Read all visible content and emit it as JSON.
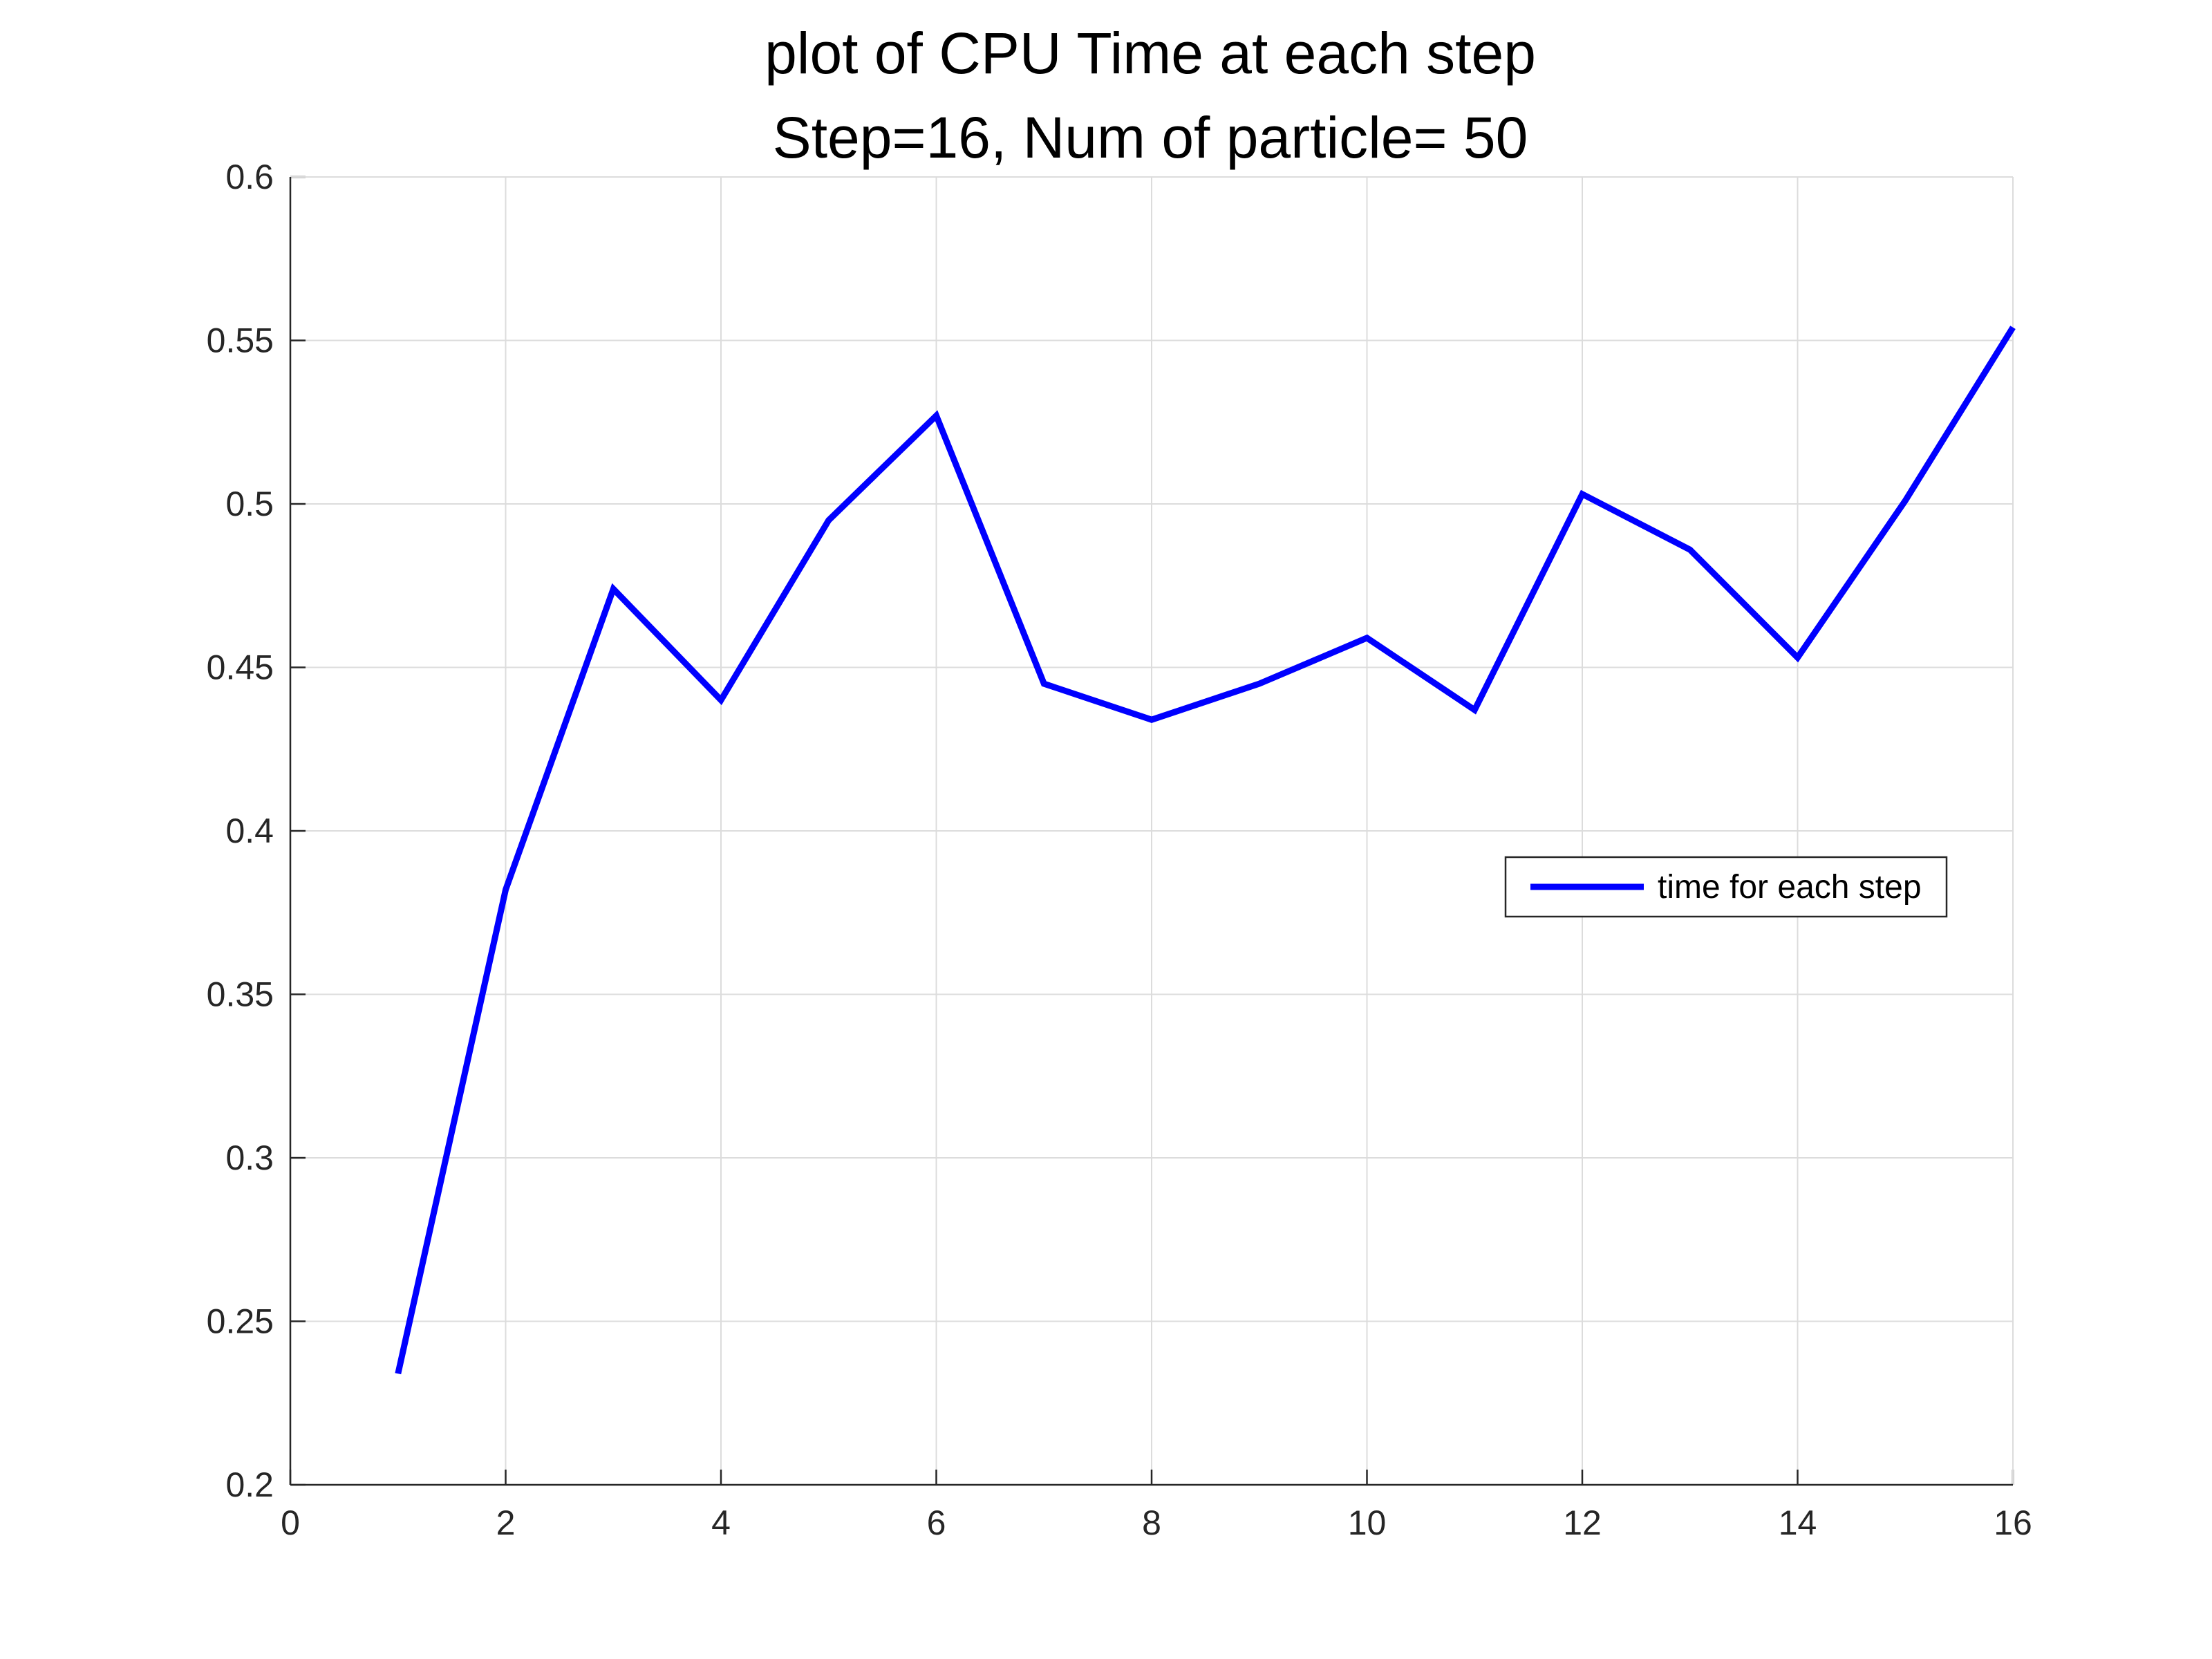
{
  "chart_data": {
    "type": "line",
    "title": "plot of CPU Time at each step",
    "subtitle": "Step=16, Num of particle= 50",
    "xlabel": "",
    "ylabel": "",
    "xlim": [
      0,
      16
    ],
    "ylim": [
      0.2,
      0.6
    ],
    "x_ticks": [
      "0",
      "2",
      "4",
      "6",
      "8",
      "10",
      "12",
      "14",
      "16"
    ],
    "y_ticks": [
      "0.2",
      "0.25",
      "0.3",
      "0.35",
      "0.4",
      "0.45",
      "0.5",
      "0.55",
      "0.6"
    ],
    "grid": true,
    "legend_position": "right",
    "series": [
      {
        "name": "time for each step",
        "color": "#0000ff",
        "x": [
          1,
          2,
          3,
          4,
          5,
          6,
          7,
          8,
          9,
          10,
          11,
          12,
          13,
          14,
          15,
          16
        ],
        "y": [
          0.234,
          0.382,
          0.474,
          0.44,
          0.495,
          0.527,
          0.445,
          0.434,
          0.445,
          0.459,
          0.437,
          0.503,
          0.486,
          0.453,
          0.501,
          0.554
        ]
      }
    ]
  }
}
